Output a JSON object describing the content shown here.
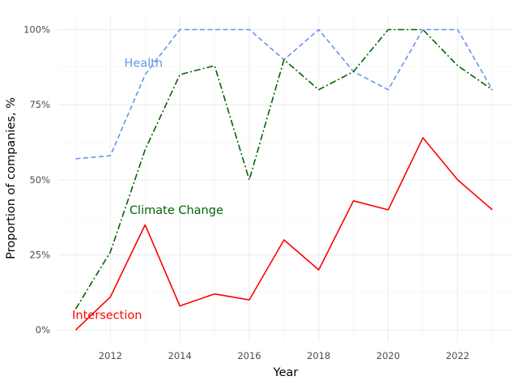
{
  "chart_data": {
    "type": "line",
    "xlabel": "Year",
    "ylabel": "Proportion of companies, %",
    "x": [
      2011,
      2012,
      2013,
      2014,
      2015,
      2016,
      2017,
      2018,
      2019,
      2020,
      2021,
      2022,
      2023
    ],
    "xlim": [
      2010.5,
      2023.6
    ],
    "ylim": [
      -0.04,
      1.05
    ],
    "x_ticks": [
      2012,
      2014,
      2016,
      2018,
      2020,
      2022
    ],
    "x_tick_labels": [
      "2012",
      "2014",
      "2016",
      "2018",
      "2020",
      "2022"
    ],
    "y_ticks": [
      0,
      0.25,
      0.5,
      0.75,
      1.0
    ],
    "y_tick_labels": [
      "0%",
      "25%",
      "50%",
      "75%",
      "100%"
    ],
    "grid": true,
    "legend": "none (direct labels on lines)",
    "series": [
      {
        "name": "Health",
        "color": "#6495ED",
        "style": "dashed",
        "values": [
          0.57,
          0.58,
          0.85,
          1.0,
          1.0,
          1.0,
          0.9,
          1.0,
          0.86,
          0.8,
          1.0,
          1.0,
          0.8
        ],
        "label_at": [
          2012.4,
          0.89
        ]
      },
      {
        "name": "Climate Change",
        "color": "#006400",
        "style": "dashdot",
        "values": [
          0.07,
          0.26,
          0.6,
          0.85,
          0.88,
          0.5,
          0.9,
          0.8,
          0.86,
          1.0,
          1.0,
          0.88,
          0.8
        ],
        "label_at": [
          2012.55,
          0.4
        ]
      },
      {
        "name": "Intersection",
        "color": "#FF0000",
        "style": "solid",
        "values": [
          0.0,
          0.11,
          0.35,
          0.08,
          0.12,
          0.1,
          0.3,
          0.2,
          0.43,
          0.4,
          0.64,
          0.5,
          0.4
        ],
        "label_at": [
          2010.9,
          0.05
        ]
      }
    ]
  }
}
